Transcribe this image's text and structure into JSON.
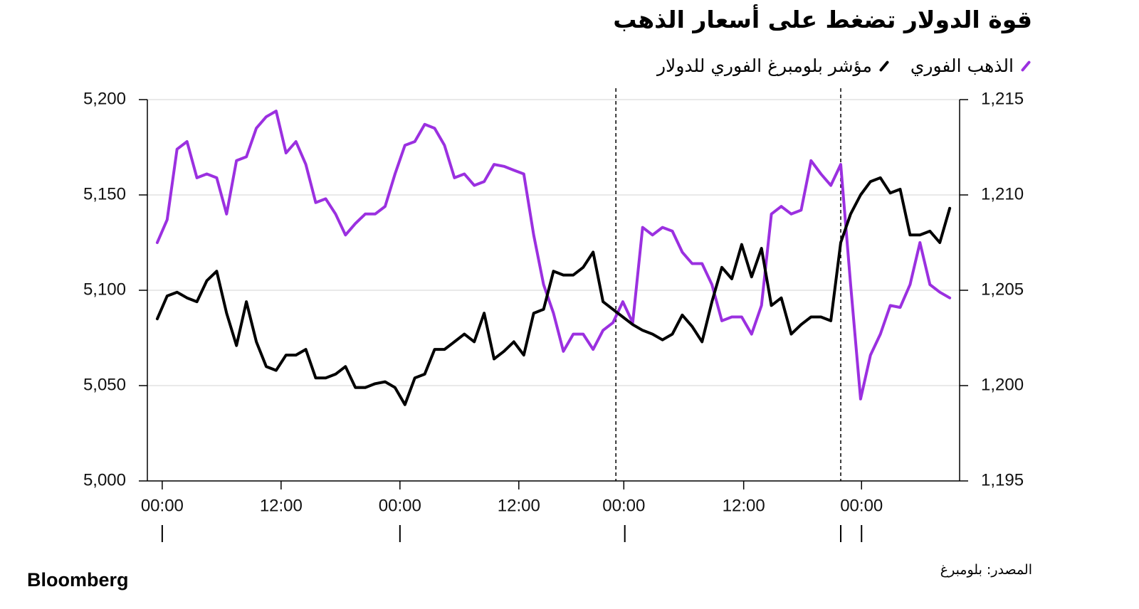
{
  "chart_data": {
    "type": "line",
    "title": "قوة الدولار تضغط على أسعار الذهب",
    "source": "المصدر: بلومبرغ",
    "brand": "Bloomberg",
    "x": [
      -0.5,
      0.5,
      1.5,
      2.5,
      3.5,
      4.5,
      5.5,
      6.5,
      7.5,
      8.5,
      9.5,
      10.5,
      11.5,
      12.5,
      13.5,
      14.5,
      15.5,
      16.5,
      17.5,
      18.5,
      19.5,
      20.5,
      21.5,
      22.5,
      23.5,
      24.5,
      25.5,
      26.5,
      27.5,
      28.5,
      29.5,
      30.5,
      31.5,
      32.5,
      33.5,
      34.5,
      35.5,
      36.5,
      37.5,
      38.5,
      39.5,
      40.5,
      41.5,
      42.5,
      43.5,
      44.5,
      45.5,
      46.5,
      47.5,
      48.5,
      49.5,
      50.5,
      51.5,
      52.5,
      53.5,
      54.5,
      55.5,
      56.5,
      57.5,
      58.5,
      59.5,
      60.5,
      61.5,
      62.5,
      63.5,
      64.5,
      65.5,
      66.5,
      67.5,
      68.5,
      69.5,
      70.5,
      71.5,
      72.5,
      73.5,
      74.5,
      75.5,
      76.5,
      77.5,
      78.5,
      79.5
    ],
    "xlim": [
      -1.5,
      80.5
    ],
    "xticks": [
      {
        "value": 0,
        "label": "00:00"
      },
      {
        "value": 12,
        "label": "12:00"
      },
      {
        "value": 24,
        "label": "00:00"
      },
      {
        "value": 36,
        "label": "12:00"
      },
      {
        "value": 46.6,
        "label": "00:00"
      },
      {
        "value": 58.7,
        "label": "12:00"
      },
      {
        "value": 70.6,
        "label": "00:00"
      }
    ],
    "day_marks": [
      0,
      24,
      46.7,
      68.5,
      70.6
    ],
    "breaks": [
      45.8,
      68.5
    ],
    "ylim": [
      5000,
      5200
    ],
    "yticks": [
      {
        "value": 5000,
        "label": "5,000"
      },
      {
        "value": 5050,
        "label": "5,050"
      },
      {
        "value": 5100,
        "label": "5,100"
      },
      {
        "value": 5150,
        "label": "5,150"
      },
      {
        "value": 5200,
        "label": "5,200"
      }
    ],
    "y2lim": [
      1195,
      1215
    ],
    "y2ticks": [
      {
        "value": 1195,
        "label": "1,195"
      },
      {
        "value": 1200,
        "label": "1,200"
      },
      {
        "value": 1205,
        "label": "1,205"
      },
      {
        "value": 1210,
        "label": "1,210"
      },
      {
        "value": 1215,
        "label": "1,215"
      }
    ],
    "grid": true,
    "series": [
      {
        "name": "الذهب الفوري",
        "color": "#9b30e0",
        "axis": "y",
        "values": [
          5125,
          5137,
          5174,
          5178,
          5159,
          5161,
          5159,
          5140,
          5168,
          5170,
          5185,
          5191,
          5194,
          5172,
          5178,
          5166,
          5146,
          5148,
          5140,
          5129,
          5135,
          5140,
          5140,
          5144,
          5161,
          5176,
          5178,
          5187,
          5185,
          5176,
          5159,
          5161,
          5155,
          5157,
          5166,
          5165,
          5163,
          5161,
          5129,
          5103,
          5088,
          5068,
          5077,
          5077,
          5069,
          5079,
          5083,
          5094,
          5083,
          5133,
          5129,
          5133,
          5131,
          5120,
          5114,
          5114,
          5103,
          5084,
          5086,
          5086,
          5077,
          5092,
          5140,
          5144,
          5140,
          5142,
          5168,
          5161,
          5155,
          5166,
          5103,
          5043,
          5066,
          5077,
          5092,
          5091,
          5103,
          5125,
          5103,
          5099,
          5096
        ]
      },
      {
        "name": "مؤشر بلومبرغ الفوري للدولار",
        "color": "#000000",
        "axis": "y2",
        "values": [
          1203.5,
          1204.7,
          1204.9,
          1204.6,
          1204.4,
          1205.5,
          1206,
          1203.8,
          1202.1,
          1204.4,
          1202.3,
          1201,
          1200.8,
          1201.6,
          1201.6,
          1201.9,
          1200.4,
          1200.4,
          1200.6,
          1201,
          1199.9,
          1199.9,
          1200.1,
          1200.2,
          1199.9,
          1199,
          1200.4,
          1200.6,
          1201.9,
          1201.9,
          1202.3,
          1202.7,
          1202.3,
          1203.8,
          1201.4,
          1201.8,
          1202.3,
          1201.6,
          1203.8,
          1204,
          1206,
          1205.8,
          1205.8,
          1206.2,
          1207,
          1204.4,
          1204,
          1203.6,
          1203.2,
          1202.9,
          1202.7,
          1202.4,
          1202.7,
          1203.7,
          1203.1,
          1202.3,
          1204.4,
          1206.2,
          1205.6,
          1207.4,
          1205.7,
          1207.2,
          1204.2,
          1204.6,
          1202.7,
          1203.2,
          1203.6,
          1203.6,
          1203.4,
          1207.5,
          1209,
          1210,
          1210.7,
          1210.9,
          1210.1,
          1210.3,
          1207.9,
          1207.9,
          1208.1,
          1207.5,
          1209.3
        ]
      }
    ]
  }
}
